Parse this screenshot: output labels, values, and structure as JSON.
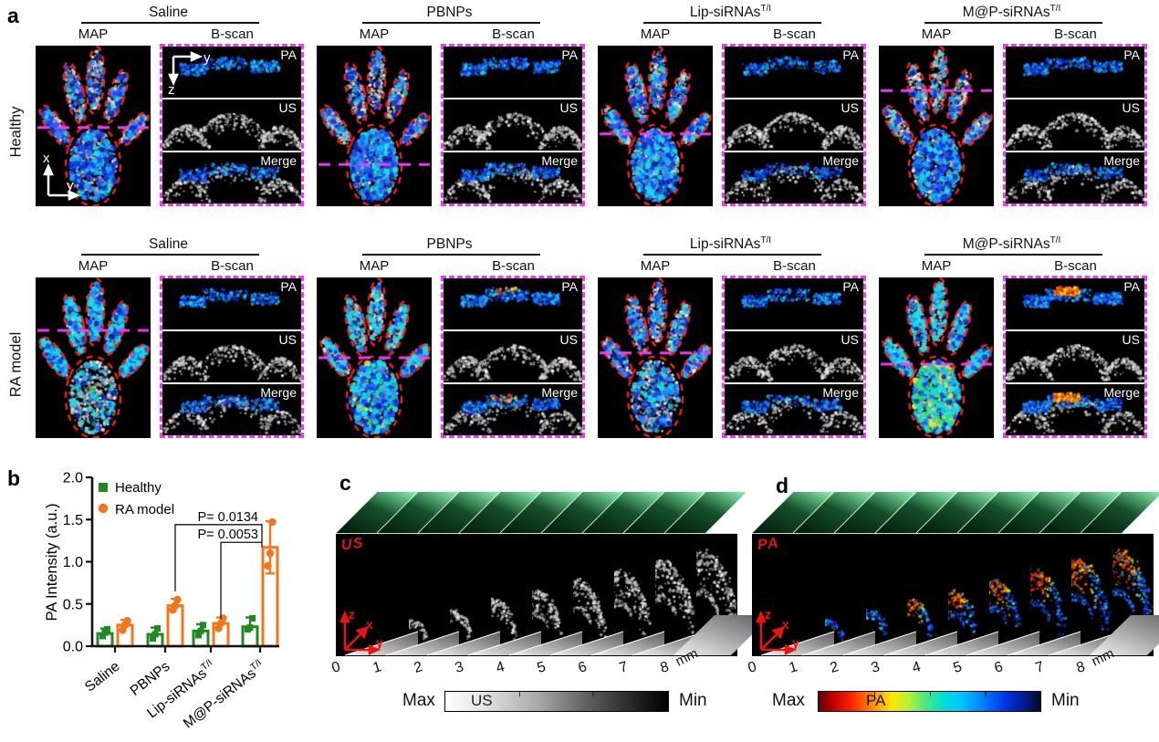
{
  "figure": {
    "panel_letters": {
      "a": "a",
      "b": "b",
      "c": "c",
      "d": "d"
    }
  },
  "panel_a": {
    "row_labels": [
      "Healthy",
      "RA model"
    ],
    "groups": [
      {
        "name": "Saline",
        "sup": ""
      },
      {
        "name": "PBNPs",
        "sup": ""
      },
      {
        "name": "Lip-siRNAs",
        "sup": "T/I"
      },
      {
        "name": "M@P-siRNAs",
        "sup": "T/I"
      }
    ],
    "map_label": "MAP",
    "bscan_label": "B-scan",
    "bscan_rows": [
      "PA",
      "US",
      "Merge"
    ],
    "map_axis": {
      "v": "x",
      "h": "y"
    },
    "bscan_axis": {
      "h": "y",
      "v": "z"
    }
  },
  "chart_data": {
    "type": "bar",
    "title": "",
    "xlabel": "",
    "ylabel": "PA Intensity (a.u.)",
    "ylim": [
      0,
      2.0
    ],
    "yticks": [
      "0.0",
      "0.5",
      "1.0",
      "1.5",
      "2.0"
    ],
    "grid": false,
    "legend_position": "top-left",
    "categories": [
      {
        "name": "Saline",
        "sup": ""
      },
      {
        "name": "PBNPs",
        "sup": ""
      },
      {
        "name": "Lip-siRNAs",
        "sup": "T/I"
      },
      {
        "name": "M@P-siRNAs",
        "sup": "T/I"
      }
    ],
    "series": [
      {
        "name": "Healthy",
        "color": "#1f8a1f",
        "marker": "square",
        "values": [
          0.15,
          0.14,
          0.18,
          0.23
        ],
        "errors": [
          0.06,
          0.08,
          0.08,
          0.11
        ],
        "points": [
          [
            0.12,
            0.16,
            0.2
          ],
          [
            0.09,
            0.14,
            0.21
          ],
          [
            0.13,
            0.18,
            0.25
          ],
          [
            0.2,
            0.22,
            0.33
          ]
        ]
      },
      {
        "name": "RA model",
        "color": "#f5761a",
        "marker": "circle",
        "values": [
          0.25,
          0.48,
          0.27,
          1.17
        ],
        "errors": [
          0.06,
          0.08,
          0.07,
          0.31
        ],
        "points": [
          [
            0.19,
            0.25,
            0.3
          ],
          [
            0.43,
            0.48,
            0.55
          ],
          [
            0.21,
            0.27,
            0.33
          ],
          [
            0.95,
            1.1,
            1.47
          ]
        ]
      }
    ],
    "annotations": [
      {
        "text": "P= 0.0134",
        "series": 1,
        "from_cat": 1,
        "to_cat": 3,
        "from_y": 0.65,
        "bar_y": 1.44,
        "drop_y": 1.17
      },
      {
        "text": "P= 0.0053",
        "series": 1,
        "from_cat": 2,
        "to_cat": 3,
        "from_y": 0.32,
        "bar_y": 1.23
      }
    ]
  },
  "panel_c": {
    "stack_label": "US",
    "axis": {
      "up": "z",
      "depth": "x",
      "right": "y"
    },
    "ticks": [
      "0",
      "1",
      "2",
      "3",
      "4",
      "5",
      "6",
      "7",
      "8"
    ],
    "unit": "mm",
    "colorbar": {
      "max": "Max",
      "label": "US",
      "min": "Min"
    }
  },
  "panel_d": {
    "stack_label": "PA",
    "axis": {
      "up": "z",
      "depth": "x",
      "right": "y"
    },
    "ticks": [
      "0",
      "1",
      "2",
      "3",
      "4",
      "5",
      "6",
      "7",
      "8"
    ],
    "unit": "mm",
    "colorbar": {
      "max": "Max",
      "label": "PA",
      "min": "Min"
    }
  }
}
